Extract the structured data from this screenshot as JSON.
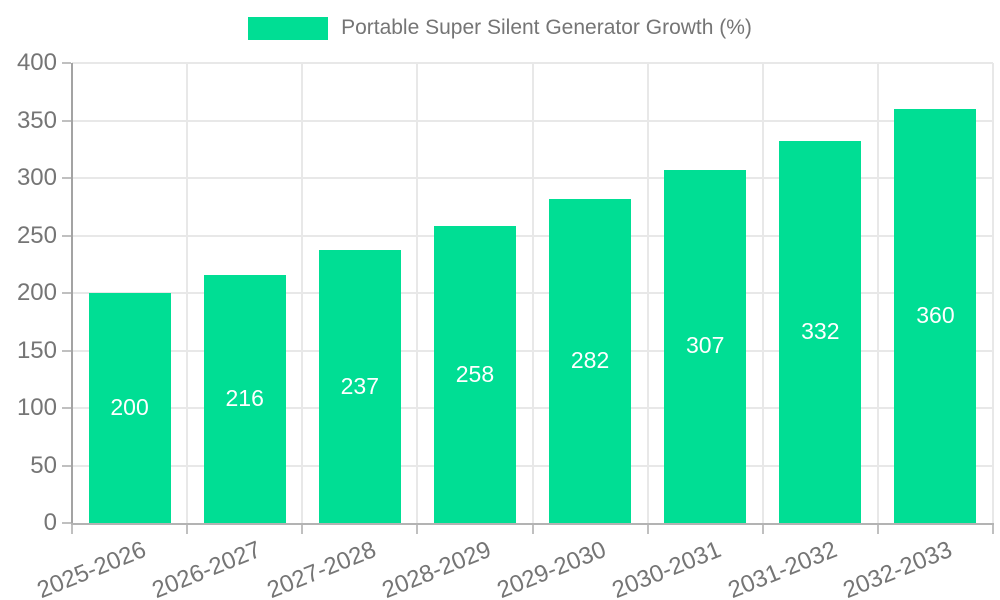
{
  "legend": {
    "label": "Portable Super Silent Generator Growth (%)",
    "swatch_color": "#00DE94"
  },
  "chart_data": {
    "type": "bar",
    "title": "Portable Super Silent Generator Growth (%)",
    "categories": [
      "2025-2026",
      "2026-2027",
      "2027-2028",
      "2028-2029",
      "2029-2030",
      "2030-2031",
      "2031-2032",
      "2032-2033"
    ],
    "series": [
      {
        "name": "Portable Super Silent Generator Growth (%)",
        "values": [
          200,
          216,
          237,
          258,
          282,
          307,
          332,
          360
        ]
      }
    ],
    "data_labels": [
      "200",
      "216",
      "237",
      "258",
      "282",
      "307",
      "332",
      "360"
    ],
    "xlabel": "",
    "ylabel": "",
    "ylim": [
      0,
      400
    ],
    "ytick_step": 50,
    "ytick_labels": [
      "0",
      "50",
      "100",
      "150",
      "200",
      "250",
      "300",
      "350",
      "400"
    ],
    "legend_position": "top",
    "grid": true,
    "x_label_rotation_deg": -22,
    "bar_color": "#00DE94",
    "data_label_color": "#FFFFFF",
    "axis_label_color": "#757575"
  },
  "colors": {
    "background": "#FFFFFF",
    "axis_line": "#A8A8A8",
    "gridline": "#E8E8E8",
    "tick": "#C0C0C0"
  }
}
